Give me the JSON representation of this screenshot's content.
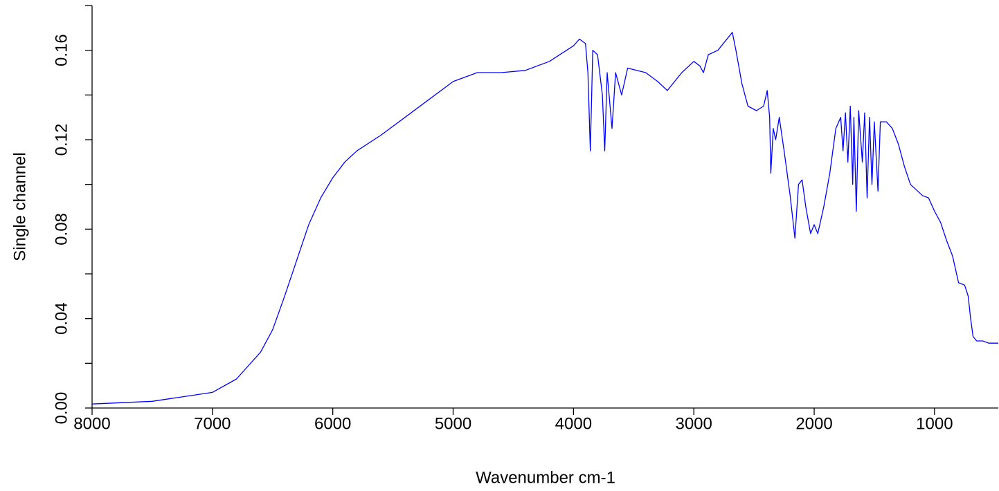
{
  "chart_data": {
    "type": "line",
    "xlabel": "Wavenumber cm-1",
    "ylabel": "Single channel",
    "xlim": [
      8000,
      470
    ],
    "ylim": [
      0,
      0.18
    ],
    "xticks": [
      8000,
      7000,
      6000,
      5000,
      4000,
      3000,
      2000,
      1000
    ],
    "yticks": [
      {
        "value": 0,
        "label": "0.00"
      },
      {
        "value": 0.02,
        "label": null
      },
      {
        "value": 0.04,
        "label": "0.04"
      },
      {
        "value": 0.06,
        "label": null
      },
      {
        "value": 0.08,
        "label": "0.08"
      },
      {
        "value": 0.1,
        "label": null
      },
      {
        "value": 0.12,
        "label": "0.12"
      },
      {
        "value": 0.14,
        "label": null
      },
      {
        "value": 0.16,
        "label": "0.16"
      },
      {
        "value": 0.18,
        "label": null
      }
    ],
    "series": [
      {
        "name": null,
        "color": "#0000ff",
        "x": [
          8000,
          7500,
          7000,
          6800,
          6600,
          6500,
          6400,
          6300,
          6200,
          6100,
          6000,
          5900,
          5800,
          5600,
          5400,
          5200,
          5000,
          4800,
          4600,
          4400,
          4200,
          4000,
          3950,
          3900,
          3880,
          3860,
          3840,
          3800,
          3760,
          3740,
          3720,
          3680,
          3650,
          3600,
          3550,
          3400,
          3300,
          3220,
          3100,
          3000,
          2950,
          2920,
          2880,
          2800,
          2680,
          2650,
          2600,
          2550,
          2480,
          2420,
          2390,
          2370,
          2360,
          2340,
          2320,
          2290,
          2250,
          2200,
          2160,
          2130,
          2100,
          2070,
          2030,
          2000,
          1970,
          1920,
          1870,
          1820,
          1780,
          1760,
          1740,
          1720,
          1700,
          1680,
          1670,
          1650,
          1630,
          1600,
          1580,
          1560,
          1540,
          1520,
          1500,
          1470,
          1450,
          1400,
          1350,
          1300,
          1250,
          1200,
          1100,
          1050,
          1000,
          950,
          900,
          850,
          800,
          750,
          720,
          700,
          680,
          650,
          600,
          550,
          500,
          470
        ],
        "values": [
          0.0018,
          0.003,
          0.007,
          0.013,
          0.025,
          0.035,
          0.05,
          0.066,
          0.082,
          0.094,
          0.103,
          0.11,
          0.115,
          0.122,
          0.13,
          0.138,
          0.146,
          0.15,
          0.15,
          0.151,
          0.155,
          0.162,
          0.165,
          0.163,
          0.15,
          0.115,
          0.16,
          0.158,
          0.14,
          0.115,
          0.15,
          0.125,
          0.15,
          0.14,
          0.152,
          0.15,
          0.146,
          0.142,
          0.15,
          0.155,
          0.153,
          0.15,
          0.158,
          0.16,
          0.168,
          0.16,
          0.145,
          0.135,
          0.133,
          0.135,
          0.142,
          0.13,
          0.105,
          0.125,
          0.12,
          0.13,
          0.115,
          0.095,
          0.076,
          0.1,
          0.102,
          0.09,
          0.078,
          0.082,
          0.078,
          0.09,
          0.105,
          0.125,
          0.13,
          0.115,
          0.132,
          0.11,
          0.135,
          0.1,
          0.13,
          0.088,
          0.133,
          0.11,
          0.132,
          0.094,
          0.13,
          0.1,
          0.128,
          0.097,
          0.128,
          0.128,
          0.125,
          0.118,
          0.108,
          0.1,
          0.095,
          0.094,
          0.088,
          0.083,
          0.075,
          0.068,
          0.056,
          0.055,
          0.05,
          0.04,
          0.032,
          0.03,
          0.03,
          0.029,
          0.029,
          0.029
        ]
      }
    ]
  }
}
